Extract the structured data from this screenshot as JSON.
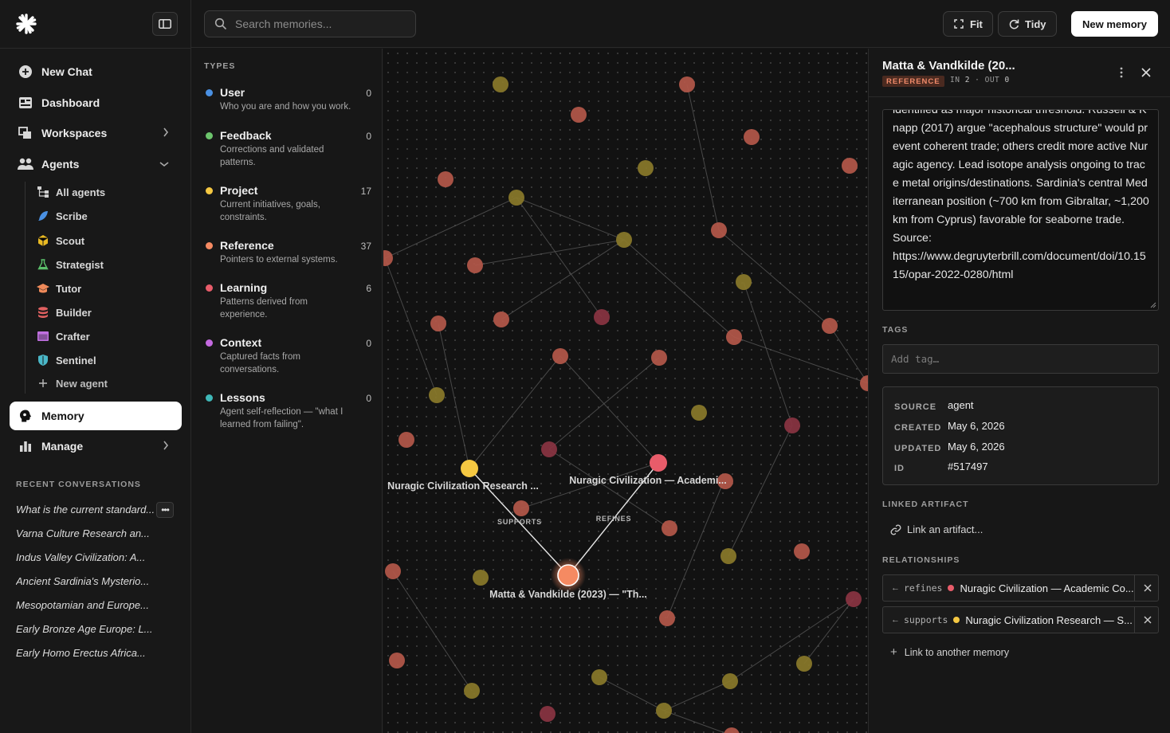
{
  "sidebar": {
    "nav": {
      "new_chat": "New Chat",
      "dashboard": "Dashboard",
      "workspaces": "Workspaces",
      "agents": "Agents",
      "memory": "Memory",
      "manage": "Manage"
    },
    "agents": [
      {
        "label": "All agents",
        "icon": "hierarchy-icon",
        "color": "#d0d0d0"
      },
      {
        "label": "Scribe",
        "icon": "feather-icon",
        "color": "#4a90e2"
      },
      {
        "label": "Scout",
        "icon": "cube-icon",
        "color": "#e8b923"
      },
      {
        "label": "Strategist",
        "icon": "flask-icon",
        "color": "#5bbf6a"
      },
      {
        "label": "Tutor",
        "icon": "graduation-cap-icon",
        "color": "#ef8a5a"
      },
      {
        "label": "Builder",
        "icon": "database-icon",
        "color": "#e06060"
      },
      {
        "label": "Crafter",
        "icon": "window-icon",
        "color": "#c070e0"
      },
      {
        "label": "Sentinel",
        "icon": "shield-icon",
        "color": "#4ab8c8"
      }
    ],
    "new_agent": "New agent",
    "recent_label": "RECENT CONVERSATIONS",
    "conversations": [
      "What is the current standard...",
      "Varna Culture Research an...",
      "Indus Valley Civilization: A...",
      "Ancient Sardinia's Mysterio...",
      "Mesopotamian and Europe...",
      "Early Bronze Age Europe: L...",
      "Early Homo Erectus Africa..."
    ]
  },
  "topbar": {
    "search_placeholder": "Search memories...",
    "fit_label": "Fit",
    "tidy_label": "Tidy",
    "new_memory_label": "New memory"
  },
  "types": {
    "label": "TYPES",
    "items": [
      {
        "name": "User",
        "count": "0",
        "desc": "Who you are and how you work.",
        "color": "#4a90e2"
      },
      {
        "name": "Feedback",
        "count": "0",
        "desc": "Corrections and validated patterns.",
        "color": "#6cc46c"
      },
      {
        "name": "Project",
        "count": "17",
        "desc": "Current initiatives, goals, constraints.",
        "color": "#f5c842"
      },
      {
        "name": "Reference",
        "count": "37",
        "desc": "Pointers to external systems.",
        "color": "#f58a62"
      },
      {
        "name": "Learning",
        "count": "6",
        "desc": "Patterns derived from experience.",
        "color": "#e85c6a"
      },
      {
        "name": "Context",
        "count": "0",
        "desc": "Captured facts from conversations.",
        "color": "#c46ae0"
      },
      {
        "name": "Lessons",
        "count": "0",
        "desc": "Agent self-reflection — \"what I learned from failing\".",
        "color": "#3fb8b8"
      }
    ]
  },
  "graph": {
    "labels": {
      "project_node": "Nuragic Civilization Research ...",
      "learning_node": "Nuragic Civilization — Academi...",
      "selected_node": "Matta & Vandkilde (2023) — \"Th...",
      "edge_supports": "SUPPORTS",
      "edge_refines": "REFINES"
    },
    "colors": {
      "reference": "#b4584a",
      "project": "#8a7a2a",
      "learning": "#8a3442",
      "project_active": "#f5c842",
      "learning_active": "#e85c6a",
      "selected": "#f58a62"
    }
  },
  "detail": {
    "title": "Matta & Vandkilde (20...",
    "badge": "REFERENCE",
    "in_label": "IN",
    "in_count": "2",
    "out_label": "OUT",
    "out_count": "0",
    "body": "identified as major historical threshold. Russell & Knapp (2017) argue \"acephalous structure\" would prevent coherent trade; others credit more active Nuragic agency. Lead isotope analysis ongoing to trace metal origins/destinations. Sardinia's central Mediterranean position (~700 km from Gibraltar, ~1,200 km from Cyprus) favorable for seaborne trade.\nSource:\nhttps://www.degruyterbrill.com/document/doi/10.1515/opar-2022-0280/html",
    "tags_label": "TAGS",
    "tag_placeholder": "Add tag…",
    "meta": {
      "source_label": "SOURCE",
      "source": "agent",
      "created_label": "CREATED",
      "created": "May 6, 2026",
      "updated_label": "UPDATED",
      "updated": "May 6, 2026",
      "id_label": "ID",
      "id": "#517497"
    },
    "linked_label": "LINKED ARTIFACT",
    "link_artifact": "Link an artifact...",
    "relationships_label": "RELATIONSHIPS",
    "relationships": [
      {
        "kind": "refines",
        "title": "Nuragic Civilization — Academic Co...",
        "color": "#e85c6a"
      },
      {
        "kind": "supports",
        "title": "Nuragic Civilization Research — S...",
        "color": "#f5c842"
      }
    ],
    "link_memory": "Link to another memory"
  }
}
